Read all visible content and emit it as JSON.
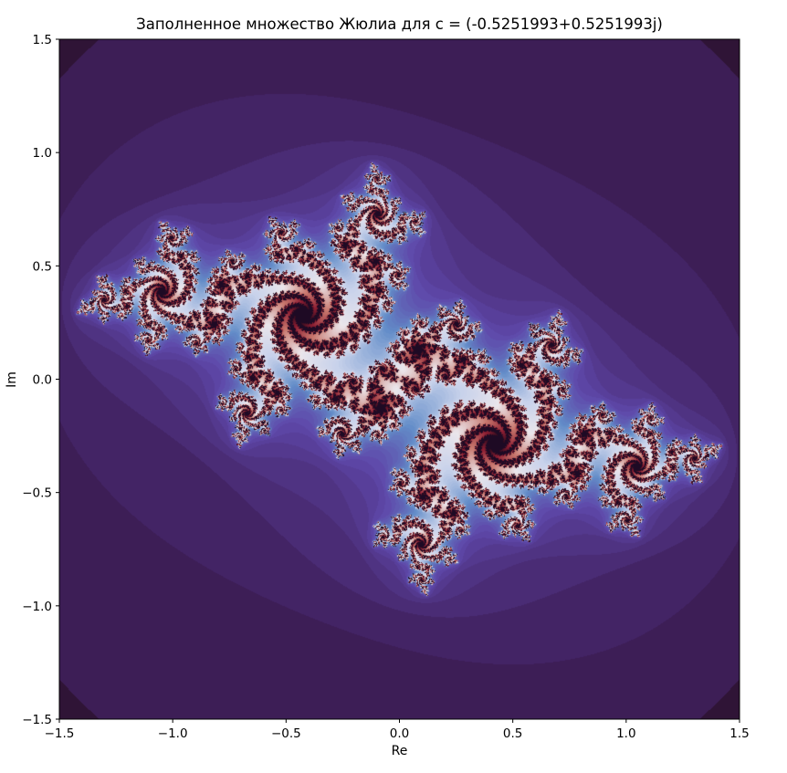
{
  "chart_data": {
    "type": "heatmap",
    "title": "Заполненное множество Жюлиа для c = (-0.5251993+0.5251993j)",
    "xlabel": "Re",
    "ylabel": "Im",
    "c": {
      "re": -0.5251993,
      "im": 0.5251993
    },
    "xlim": [
      -1.5,
      1.5
    ],
    "ylim": [
      -1.5,
      1.5
    ],
    "xticks": [
      -1.5,
      -1.0,
      -0.5,
      0.0,
      0.5,
      1.0,
      1.5
    ],
    "xtick_labels": [
      "−1.5",
      "−1.0",
      "−0.5",
      "0.0",
      "0.5",
      "1.0",
      "1.5"
    ],
    "yticks": [
      -1.5,
      -1.0,
      -0.5,
      0.0,
      0.5,
      1.0,
      1.5
    ],
    "ytick_labels": [
      "−1.5",
      "−1.0",
      "−0.5",
      "0.0",
      "0.5",
      "1.0",
      "1.5"
    ],
    "colormap": "twilight_shifted",
    "grid": false,
    "colors": {
      "background": "#2f1436",
      "inner": "#1e0a24"
    }
  }
}
